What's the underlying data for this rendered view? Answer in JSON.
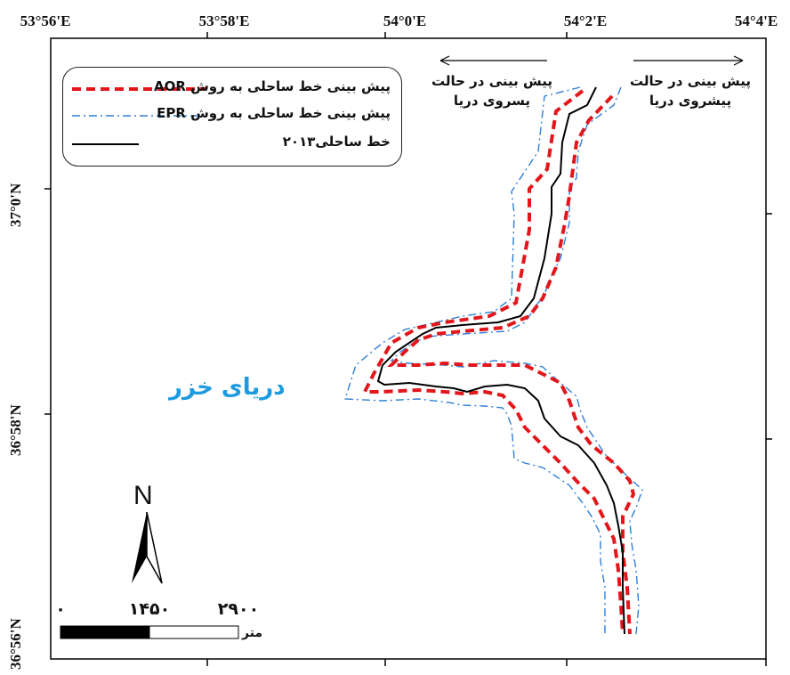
{
  "longitude_labels": [
    "53°56'E",
    "53°58'E",
    "54°0'E",
    "54°2'E",
    "54°4'E"
  ],
  "latitude_labels": [
    "37°0'N",
    "36°58'N",
    "36°56'N"
  ],
  "legend": {
    "items": [
      {
        "label": "پیش بینی خط ساحلی به روش AOR",
        "color": "#e3161b",
        "style": "dashed"
      },
      {
        "label": "پیش بینی خط ساحلی به روش EPR",
        "color": "#2f7fd6",
        "style": "dash-dot"
      },
      {
        "label": "خط ساحلی۲۰۱۳",
        "color": "#000000",
        "style": "solid"
      }
    ]
  },
  "annotations": {
    "retreat": "پیش بینی در حالت\nپسروی دریا",
    "advance": "پیش بینی در حالت\nپیشروی دریا"
  },
  "sea_label": "دریای خزر",
  "north_arrow": {
    "letter": "N",
    "icon": "north-arrow-icon"
  },
  "scale_bar": {
    "ticks": [
      "۰",
      "۱۴۵۰",
      "۲۹۰۰"
    ],
    "unit": "متر"
  },
  "colors": {
    "aor": "#e3161b",
    "epr": "#2f7fd6",
    "coastline": "#000000",
    "sea_label": "#1e9be0"
  }
}
